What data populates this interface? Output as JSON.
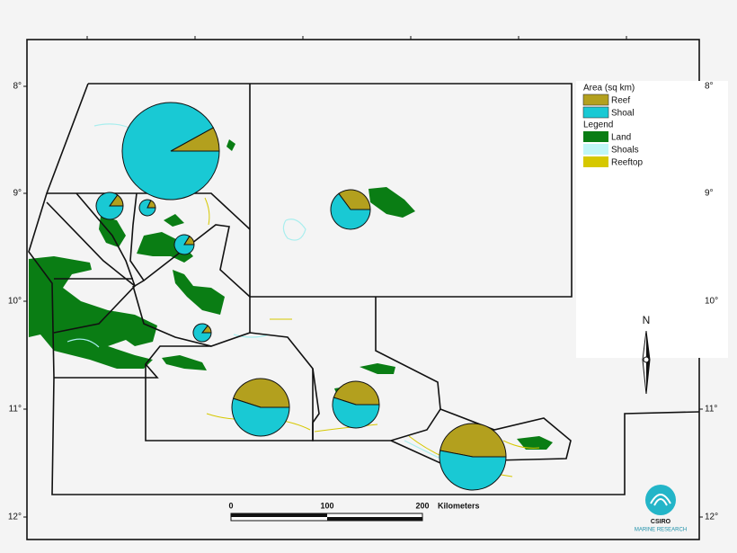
{
  "lat_labels_left": [
    "8°",
    "9°",
    "10°",
    "11°",
    "12°"
  ],
  "lat_labels_right": [
    "8°",
    "9°",
    "10°",
    "11°",
    "12°"
  ],
  "legend": {
    "area_title": "Area (sq km)",
    "reef": "Reef",
    "shoal": "Shoal",
    "legend_title": "Legend",
    "land": "Land",
    "shoals": "Shoals",
    "reeftop": "Reeftop"
  },
  "scale_bar": {
    "labels": [
      0,
      100,
      200
    ],
    "unit": "Kilometers"
  },
  "north": "N",
  "logo": {
    "name": "CSIRO",
    "division": "MARINE RESEARCH"
  },
  "pies": [
    {
      "reef": 240,
      "shoal": 2760
    },
    {
      "reef": 35,
      "shoal": 196
    },
    {
      "reef": 15,
      "shoal": 68
    },
    {
      "reef": 20,
      "shoal": 104
    },
    {
      "reef": 15,
      "shoal": 88
    },
    {
      "reef": 175,
      "shoal": 323
    },
    {
      "reef": 474,
      "shoal": 579
    },
    {
      "reef": 313,
      "shoal": 382
    },
    {
      "reef": 662,
      "shoal": 747
    }
  ]
}
